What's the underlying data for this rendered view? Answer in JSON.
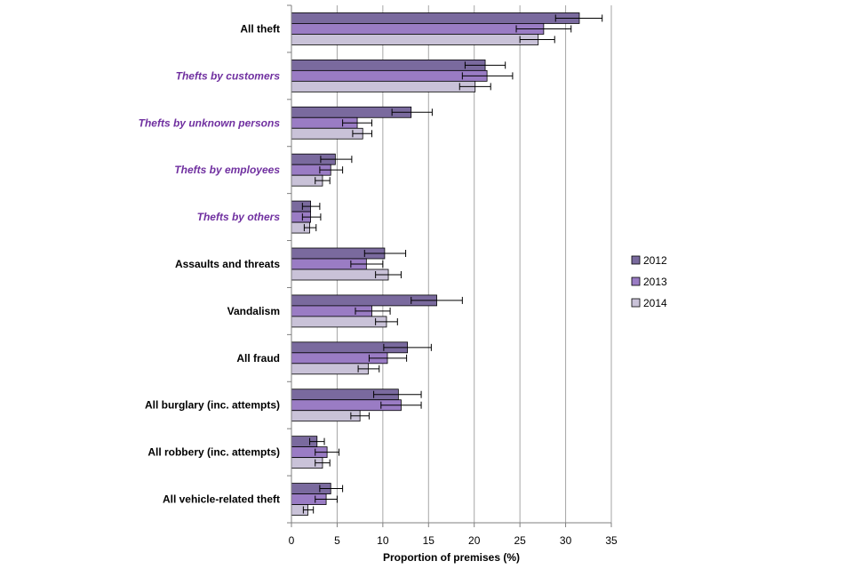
{
  "chart_data": {
    "type": "bar",
    "orientation": "horizontal",
    "title": "",
    "xlabel": "Proportion of premises (%)",
    "ylabel": "",
    "xlim": [
      0,
      35
    ],
    "xticks": [
      0,
      5,
      10,
      15,
      20,
      25,
      30,
      35
    ],
    "grid": "vertical major gridlines",
    "legend_position": "right",
    "error_bars": true,
    "categories": [
      {
        "label": "All theft",
        "subcategory": false
      },
      {
        "label": "Thefts by customers",
        "subcategory": true
      },
      {
        "label": "Thefts by unknown persons",
        "subcategory": true
      },
      {
        "label": "Thefts by employees",
        "subcategory": true
      },
      {
        "label": "Thefts by others",
        "subcategory": true
      },
      {
        "label": "Assaults and threats",
        "subcategory": false
      },
      {
        "label": "Vandalism",
        "subcategory": false
      },
      {
        "label": "All fraud",
        "subcategory": false
      },
      {
        "label": "All burglary (inc. attempts)",
        "subcategory": false
      },
      {
        "label": "All robbery (inc. attempts)",
        "subcategory": false
      },
      {
        "label": "All vehicle-related theft",
        "subcategory": false
      }
    ],
    "series": [
      {
        "name": "2012",
        "color": "#7a6a9e",
        "values": [
          31.5,
          21.2,
          13.1,
          4.8,
          2.1,
          10.2,
          15.9,
          12.7,
          11.7,
          2.8,
          4.3
        ],
        "err_low": [
          28.9,
          19.0,
          11.0,
          3.2,
          1.2,
          8.0,
          13.1,
          10.1,
          9.0,
          2.0,
          3.1
        ],
        "err_high": [
          34.0,
          23.4,
          15.4,
          6.6,
          3.1,
          12.5,
          18.7,
          15.3,
          14.2,
          3.6,
          5.6
        ]
      },
      {
        "name": "2013",
        "color": "#9a7cc4",
        "values": [
          27.6,
          21.4,
          7.2,
          4.3,
          2.1,
          8.2,
          8.8,
          10.5,
          12.0,
          3.9,
          3.8
        ],
        "err_low": [
          24.6,
          18.7,
          5.6,
          3.1,
          1.2,
          6.5,
          7.0,
          8.5,
          9.8,
          2.6,
          2.6
        ],
        "err_high": [
          30.6,
          24.2,
          8.8,
          5.6,
          3.2,
          10.0,
          10.8,
          12.6,
          14.2,
          5.2,
          5.0
        ]
      },
      {
        "name": "2014",
        "color": "#c9c2d8",
        "values": [
          27.0,
          20.1,
          7.8,
          3.4,
          2.0,
          10.6,
          10.4,
          8.4,
          7.5,
          3.4,
          1.8
        ],
        "err_low": [
          25.0,
          18.4,
          6.7,
          2.6,
          1.4,
          9.2,
          9.2,
          7.3,
          6.5,
          2.6,
          1.3
        ],
        "err_high": [
          28.8,
          21.8,
          8.8,
          4.2,
          2.7,
          12.0,
          11.6,
          9.6,
          8.5,
          4.2,
          2.4
        ]
      }
    ]
  }
}
